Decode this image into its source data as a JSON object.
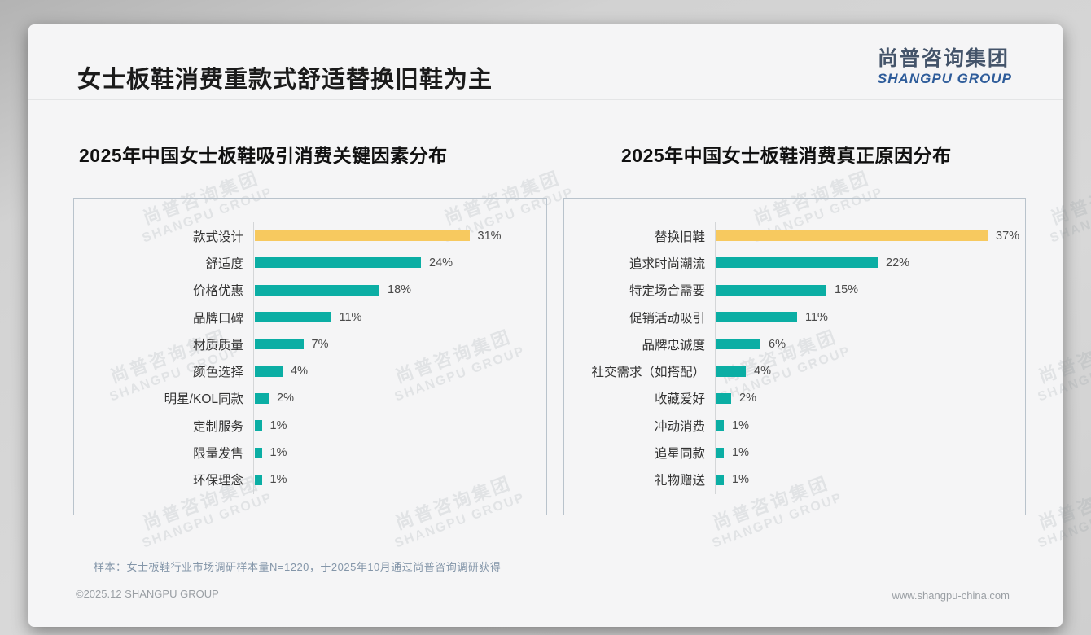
{
  "header": {
    "title": "女士板鞋消费重款式舒适替换旧鞋为主",
    "logo_cn": "尚普咨询集团",
    "logo_en": "SHANGPU GROUP"
  },
  "watermark": {
    "cn": "尚普咨询集团",
    "en": "SHANGPU GROUP"
  },
  "colors": {
    "bar_teal": "#0BAEA4",
    "bar_highlight": "#F7C95F",
    "logo_cn": "#44546A",
    "logo_en": "#2E5C9A"
  },
  "chart_data": [
    {
      "type": "bar",
      "orientation": "horizontal",
      "title": "2025年中国女士板鞋吸引消费关键因素分布",
      "categories": [
        "款式设计",
        "舒适度",
        "价格优惠",
        "品牌口碑",
        "材质质量",
        "颜色选择",
        "明星/KOL同款",
        "定制服务",
        "限量发售",
        "环保理念"
      ],
      "values": [
        31,
        24,
        18,
        11,
        7,
        4,
        2,
        1,
        1,
        1
      ],
      "unit": "%",
      "highlight_index": 0,
      "grid": false,
      "legend": false
    },
    {
      "type": "bar",
      "orientation": "horizontal",
      "title": "2025年中国女士板鞋消费真正原因分布",
      "categories": [
        "替换旧鞋",
        "追求时尚潮流",
        "特定场合需要",
        "促销活动吸引",
        "品牌忠诚度",
        "社交需求（如搭配）",
        "收藏爱好",
        "冲动消费",
        "追星同款",
        "礼物赠送"
      ],
      "values": [
        37,
        22,
        15,
        11,
        6,
        4,
        2,
        1,
        1,
        1
      ],
      "unit": "%",
      "highlight_index": 0,
      "grid": false,
      "legend": false
    }
  ],
  "footnote": {
    "sample_note": "样本：女士板鞋行业市场调研样本量N=1220，于2025年10月通过尚普咨询调研获得"
  },
  "footer": {
    "left": "©2025.12 SHANGPU GROUP",
    "right": "www.shangpu-china.com"
  }
}
